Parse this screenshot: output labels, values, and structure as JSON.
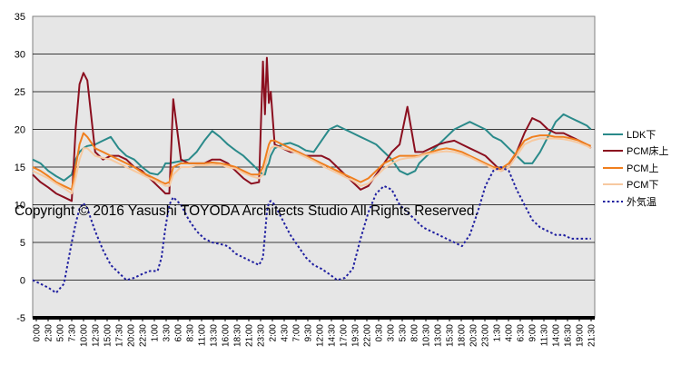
{
  "chart_data": {
    "type": "line",
    "title": "",
    "xlabel": "",
    "ylabel": "",
    "ylim": [
      -5,
      35
    ],
    "y_ticks": [
      -5,
      0,
      5,
      10,
      15,
      20,
      25,
      30,
      35
    ],
    "x_tick_labels": [
      "0:00",
      "2:30",
      "5:00",
      "7:30",
      "10:00",
      "12:30",
      "15:00",
      "17:30",
      "20:00",
      "22:30",
      "1:00",
      "3:30",
      "6:00",
      "8:30",
      "11:00",
      "13:30",
      "16:00",
      "18:30",
      "21:00",
      "23:30",
      "2:00",
      "4:30",
      "7:00",
      "9:30",
      "12:00",
      "14:30",
      "17:00",
      "19:30",
      "22:00",
      "0:30",
      "3:00",
      "5:30",
      "8:00",
      "10:30",
      "13:00",
      "15:30",
      "18:00",
      "20:30",
      "23:00",
      "1:30",
      "4:00",
      "6:30",
      "9:00",
      "11:30",
      "14:00",
      "16:30",
      "19:00",
      "21:30"
    ],
    "grid": "horizontal",
    "legend_position": "right",
    "plot_background": "#e6e6e6",
    "watermark": "Copyright © 2016 Yasushi TOYODA Architects Studio All Rights Reserved.",
    "hours": [
      0,
      2,
      4,
      6,
      8,
      10,
      11,
      12,
      13,
      14,
      16,
      18,
      20,
      22,
      24,
      26,
      28,
      30,
      32,
      33,
      34,
      35,
      36,
      38,
      40,
      42,
      44,
      46,
      48,
      50,
      52,
      54,
      56,
      58,
      59,
      59.5,
      60,
      60.5,
      61,
      62,
      64,
      66,
      68,
      70,
      72,
      74,
      76,
      78,
      80,
      82,
      84,
      86,
      88,
      90,
      92,
      94,
      96,
      98,
      99,
      100,
      102,
      104,
      106,
      108,
      110,
      112,
      114,
      116,
      118,
      120,
      122,
      124,
      126,
      128,
      130,
      132,
      134,
      136,
      138,
      140,
      142,
      143
    ],
    "series": [
      {
        "name": "LDK下",
        "color": "#2a8a8a",
        "style": "solid",
        "values": [
          16,
          15.5,
          14.5,
          13.8,
          13.2,
          14,
          16,
          17,
          17.5,
          17.8,
          18,
          18.5,
          19,
          17.5,
          16.5,
          16,
          15,
          14.2,
          14,
          14.5,
          15.5,
          15.5,
          15.6,
          15.8,
          16,
          17,
          18.5,
          19.8,
          19,
          18,
          17.2,
          16.5,
          15.5,
          14.5,
          14,
          14,
          15,
          15.5,
          16.5,
          17.5,
          18,
          18.2,
          17.8,
          17.2,
          17,
          18.5,
          20,
          20.5,
          20,
          19.5,
          19,
          18.5,
          18,
          17,
          16,
          14.5,
          14,
          14.5,
          15.5,
          16,
          17,
          18,
          19,
          20,
          20.5,
          21,
          20.5,
          20,
          19,
          18.5,
          17.5,
          16.5,
          15.5,
          15.5,
          17,
          19,
          21,
          22,
          21.5,
          21,
          20.5,
          20
        ]
      },
      {
        "name": "PCM床上",
        "color": "#8b0f1f",
        "style": "solid",
        "values": [
          14,
          13,
          12.3,
          11.5,
          11,
          10.5,
          20,
          26,
          27.5,
          26.5,
          17,
          16,
          16.5,
          16.5,
          16,
          15,
          14.5,
          13.5,
          12.5,
          12,
          11.5,
          11.5,
          24,
          16,
          15.5,
          15.5,
          15.5,
          16,
          16,
          15.5,
          14.5,
          13.5,
          12.8,
          13,
          29,
          22,
          29.5,
          23.5,
          25,
          18,
          17.5,
          17,
          17,
          16.5,
          16.5,
          16.5,
          16,
          15,
          14,
          13,
          12,
          12.5,
          14,
          15.5,
          17,
          18,
          23,
          17,
          17,
          17,
          17.5,
          18,
          18.3,
          18.5,
          18,
          17.5,
          17,
          16.5,
          15.5,
          14.5,
          15,
          17,
          19.5,
          21.5,
          21,
          20,
          19.5,
          19.5,
          19,
          18.5,
          18,
          17.5
        ]
      },
      {
        "name": "PCM上",
        "color": "#f07f1e",
        "style": "solid",
        "values": [
          15,
          14.5,
          13.8,
          13,
          12.5,
          12,
          15,
          18,
          19.5,
          19,
          17.5,
          17,
          16.5,
          16,
          15.5,
          15,
          14.3,
          13.8,
          13.3,
          13,
          12.8,
          13,
          15,
          15.5,
          15.5,
          15.5,
          15.5,
          15.6,
          15.5,
          15.3,
          15,
          14.5,
          14,
          14,
          15,
          16,
          17,
          18,
          18.5,
          18.5,
          18,
          17.5,
          17,
          16.5,
          16,
          15.5,
          15,
          14.5,
          14,
          13.5,
          13,
          13.5,
          14.5,
          15.5,
          16,
          16.5,
          16.5,
          16.5,
          16.5,
          16.7,
          17,
          17.3,
          17.5,
          17.3,
          17,
          16.5,
          16,
          15.5,
          15,
          14.8,
          15.5,
          17,
          18.5,
          19,
          19.2,
          19.2,
          19,
          19,
          18.8,
          18.5,
          18,
          17.8
        ]
      },
      {
        "name": "PCM下",
        "color": "#f7c9a0",
        "style": "solid",
        "values": [
          14.5,
          14,
          13.5,
          12.8,
          12.2,
          11.5,
          13.5,
          16,
          17.5,
          17.5,
          16.5,
          16.2,
          16,
          15.5,
          15,
          14.5,
          14,
          13.5,
          13,
          12.8,
          12.5,
          12.5,
          14,
          15,
          15,
          15.2,
          15.2,
          15.3,
          15.3,
          15,
          14.8,
          14.2,
          13.8,
          13.5,
          14,
          15,
          16,
          16.8,
          17.5,
          17.8,
          17.5,
          17.2,
          16.8,
          16.3,
          15.8,
          15.2,
          14.7,
          14.2,
          13.7,
          13.2,
          12.5,
          12.8,
          13.8,
          14.8,
          15.5,
          16,
          16.2,
          16.3,
          16.4,
          16.6,
          16.8,
          17,
          17.1,
          17,
          16.7,
          16.3,
          15.8,
          15.3,
          14.8,
          14.5,
          15,
          16.5,
          18,
          18.5,
          18.8,
          18.8,
          18.8,
          18.7,
          18.5,
          18.2,
          17.8,
          17.5
        ]
      },
      {
        "name": "外気温",
        "color": "#1f1fa0",
        "style": "dotted",
        "values": [
          0,
          -0.5,
          -1,
          -1.7,
          -0.5,
          5,
          7.5,
          9.5,
          10.2,
          9.5,
          6.5,
          4,
          2,
          1,
          0,
          0.3,
          0.8,
          1.2,
          1.2,
          3,
          7,
          10,
          11,
          10,
          8,
          6.5,
          5.5,
          5,
          4.8,
          4.5,
          3.5,
          3,
          2.5,
          2,
          3,
          6,
          9,
          10.3,
          10.5,
          10,
          8,
          6,
          4.5,
          3,
          2,
          1.5,
          0.8,
          0,
          0.3,
          1.5,
          5.5,
          9,
          11.5,
          12.5,
          12,
          10,
          9,
          8,
          7.5,
          7,
          6.5,
          6,
          5.5,
          5,
          4.5,
          6,
          9,
          12.5,
          14.5,
          15,
          14.5,
          12,
          10,
          8,
          7,
          6.5,
          6,
          6,
          5.5,
          5.5,
          5.5,
          5.5
        ]
      }
    ]
  }
}
